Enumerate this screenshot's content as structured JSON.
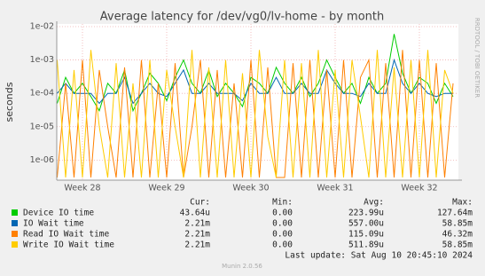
{
  "chart_data": {
    "type": "line",
    "title": "Average latency for /dev/vg0/lv-home - by month",
    "ylabel": "seconds",
    "side_label": "RRDTOOL / TOBI OETIKER",
    "log_scale": true,
    "grid": true,
    "ylim": [
      2.5e-07,
      0.012
    ],
    "yticks": [
      {
        "value": 1e-06,
        "label": "1e-06"
      },
      {
        "value": 1e-05,
        "label": "1e-05"
      },
      {
        "value": 0.0001,
        "label": "1e-04"
      },
      {
        "value": 0.001,
        "label": "1e-03"
      },
      {
        "value": 0.01,
        "label": "1e-02"
      }
    ],
    "categories": [
      null,
      null,
      null,
      "Week 28",
      null,
      null,
      null,
      null,
      null,
      null,
      null,
      null,
      null,
      "Week 29",
      null,
      null,
      null,
      null,
      null,
      null,
      null,
      null,
      null,
      "Week 30",
      null,
      null,
      null,
      null,
      null,
      null,
      null,
      null,
      null,
      "Week 31",
      null,
      null,
      null,
      null,
      null,
      null,
      null,
      null,
      null,
      "Week 32",
      null,
      null,
      null,
      null
    ],
    "series": [
      {
        "name": "Device IO time",
        "color": "#00cc00",
        "values": [
          5e-05,
          0.0003,
          0.0001,
          0.0002,
          8e-05,
          3e-05,
          0.0002,
          0.0001,
          0.0005,
          3e-05,
          0.0001,
          0.0004,
          0.0002,
          6e-05,
          0.0003,
          0.001,
          0.0002,
          0.0001,
          0.0005,
          8e-05,
          0.0002,
          0.0001,
          4e-05,
          0.0003,
          0.0002,
          0.0001,
          0.0006,
          0.0002,
          0.0001,
          0.0003,
          8e-05,
          0.0002,
          0.001,
          0.0003,
          0.0001,
          0.0002,
          5e-05,
          0.0003,
          0.0001,
          0.0002,
          0.006,
          0.0004,
          0.0001,
          0.0003,
          0.0002,
          5e-05,
          0.0002,
          8e-05
        ]
      },
      {
        "name": "IO Wait time",
        "color": "#0066b3",
        "values": [
          0.0001,
          0.0002,
          0.0001,
          0.0001,
          0.0001,
          5e-05,
          0.0001,
          0.0001,
          0.0003,
          5e-05,
          0.0001,
          0.0002,
          0.0001,
          8e-05,
          0.0002,
          0.0005,
          0.0001,
          0.0001,
          0.0002,
          0.0001,
          0.0001,
          0.0001,
          6e-05,
          0.0002,
          0.0001,
          0.0001,
          0.0003,
          0.0001,
          0.0001,
          0.0002,
          0.0001,
          0.0001,
          0.0005,
          0.0002,
          0.0001,
          0.0001,
          8e-05,
          0.0002,
          0.0001,
          0.0001,
          0.001,
          0.0002,
          0.0001,
          0.0002,
          0.0001,
          8e-05,
          0.0001,
          0.0001
        ]
      },
      {
        "name": "Read IO Wait time",
        "color": "#ff8000",
        "values": [
          3e-07,
          0.0002,
          3e-07,
          0.001,
          3e-07,
          0.0005,
          1e-05,
          3e-07,
          0.0006,
          3e-07,
          0.001,
          3e-07,
          0.0002,
          3e-07,
          0.0008,
          3e-07,
          1e-05,
          0.001,
          3e-07,
          0.0005,
          3e-07,
          0.0002,
          3e-07,
          0.001,
          3e-07,
          0.0006,
          3e-07,
          3e-07,
          0.0008,
          3e-07,
          0.001,
          3e-07,
          0.0005,
          3e-07,
          0.001,
          3e-07,
          0.0003,
          0.001,
          3e-07,
          0.0008,
          3e-07,
          0.002,
          3e-07,
          0.001,
          3e-07,
          0.0008,
          3e-07,
          0.0002
        ]
      },
      {
        "name": "Write IO Wait time",
        "color": "#ffcc00",
        "values": [
          0.001,
          3e-07,
          0.0005,
          3e-07,
          0.002,
          1e-05,
          3e-07,
          0.0008,
          3e-07,
          0.0002,
          3e-07,
          0.001,
          3e-07,
          0.0005,
          1e-05,
          3e-07,
          0.002,
          3e-07,
          0.0006,
          3e-07,
          0.001,
          3e-07,
          0.0004,
          3e-07,
          0.002,
          5e-06,
          3e-07,
          0.001,
          3e-07,
          0.0008,
          3e-07,
          0.002,
          3e-07,
          0.0005,
          3e-07,
          0.001,
          2e-05,
          3e-07,
          0.002,
          3e-07,
          0.0006,
          3e-07,
          0.001,
          3e-07,
          0.002,
          3e-07,
          0.0005,
          0.0001
        ]
      }
    ],
    "legend_table": {
      "columns": [
        "Cur:",
        "Min:",
        "Avg:",
        "Max:"
      ],
      "rows": [
        [
          "43.64u",
          "0.00",
          "223.99u",
          "127.64m"
        ],
        [
          "2.21m",
          "0.00",
          "557.00u",
          "58.85m"
        ],
        [
          "2.21m",
          "0.00",
          "115.09u",
          "46.32m"
        ],
        [
          "2.21m",
          "0.00",
          "511.89u",
          "58.85m"
        ]
      ]
    },
    "last_update": "Last update: Sat Aug 10 20:45:10 2024",
    "footer": "Munin 2.0.56"
  }
}
